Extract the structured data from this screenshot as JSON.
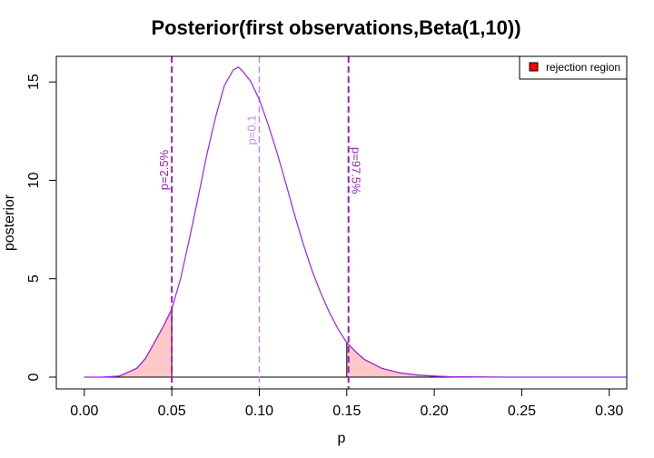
{
  "chart_data": {
    "type": "area",
    "title": "Posterior(first observations,Beta(1,10))",
    "xlabel": "p",
    "ylabel": "posterior",
    "xlim": [
      -0.016,
      0.31
    ],
    "ylim": [
      -0.6,
      16.3
    ],
    "x_ticks": [
      "0.00",
      "0.05",
      "0.10",
      "0.15",
      "0.20",
      "0.25",
      "0.30"
    ],
    "y_ticks": [
      "0",
      "5",
      "10",
      "15"
    ],
    "grid": false,
    "series": [
      {
        "curve": "posterior density",
        "color": "#A020F0",
        "x": [
          0.0,
          0.01,
          0.02,
          0.03,
          0.035,
          0.04,
          0.045,
          0.05,
          0.055,
          0.06,
          0.065,
          0.07,
          0.075,
          0.08,
          0.085,
          0.088,
          0.09,
          0.095,
          0.1,
          0.105,
          0.11,
          0.115,
          0.12,
          0.125,
          0.13,
          0.135,
          0.14,
          0.145,
          0.15,
          0.155,
          0.16,
          0.17,
          0.18,
          0.19,
          0.2,
          0.21,
          0.22,
          0.24,
          0.26,
          0.28,
          0.31
        ],
        "y": [
          0.0,
          0.0,
          0.05,
          0.45,
          0.95,
          1.75,
          2.55,
          3.45,
          5.0,
          7.0,
          9.1,
          11.3,
          13.2,
          14.8,
          15.6,
          15.75,
          15.6,
          15.05,
          14.1,
          12.85,
          11.45,
          9.9,
          8.3,
          6.8,
          5.45,
          4.3,
          3.3,
          2.45,
          1.75,
          1.3,
          0.9,
          0.45,
          0.22,
          0.11,
          0.05,
          0.02,
          0.01,
          0.0,
          0.0,
          0.0,
          0.0
        ]
      }
    ],
    "rejection_region": {
      "fill": "#FFC8C8",
      "lower": [
        0.0,
        0.05
      ],
      "upper": [
        0.15,
        0.31
      ]
    },
    "vlines": [
      {
        "x": 0.05,
        "label": "p=2.5%",
        "color": "#9A1FB8",
        "style": "dashed",
        "width": 2
      },
      {
        "x": 0.1,
        "label": "p=0.1",
        "color": "#C58BE6",
        "style": "dashed",
        "width": 1.5
      },
      {
        "x": 0.151,
        "label": "p=97.5%",
        "color": "#9A1FB8",
        "style": "dashed",
        "width": 2
      }
    ],
    "legend": {
      "placement": "top-right",
      "entries": [
        {
          "label": "rejection region",
          "color": "#FF0000"
        }
      ]
    }
  }
}
